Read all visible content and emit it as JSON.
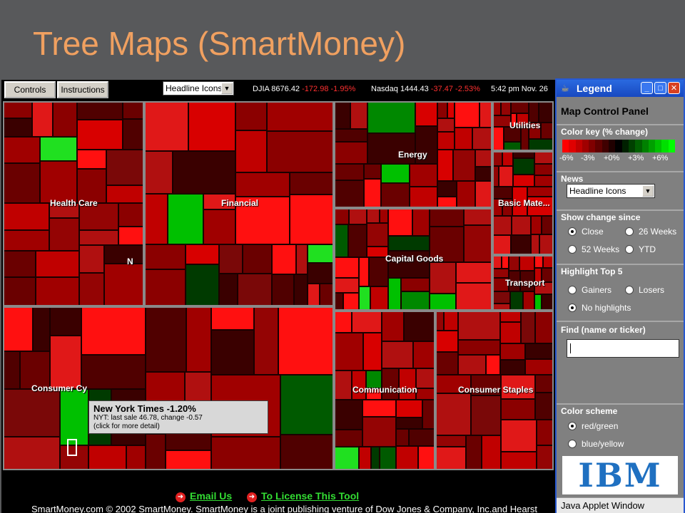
{
  "slide_title": "Tree Maps (SmartMoney)",
  "toolbar": {
    "controls_label": "Controls",
    "instructions_label": "Instructions",
    "news_selected": "Headline Icons",
    "djia": "DJIA 8676.42",
    "djia_change": "-172.98 -1.95%",
    "nasdaq": "Nasdaq 1444.43",
    "nasdaq_change": "-37.47 -2.53%",
    "time": "5:42 pm Nov. 26"
  },
  "sectors": {
    "health_care": "Health Care",
    "financial": "Financial",
    "energy": "Energy",
    "utilities": "Utilities",
    "basic_materials": "Basic Mate...",
    "capital_goods": "Capital Goods",
    "transport": "Transport",
    "consumer_cyclical": "Consumer Cy",
    "communication": "Communication",
    "consumer_staples": "Consumer Staples",
    "marker": "N"
  },
  "tooltip": {
    "title": "New York Times -1.20%",
    "line1": "NYT: last sale 46.78,  change -0.57",
    "line2": "(click for more detail)"
  },
  "footer": {
    "email_label": "Email Us",
    "license_label": "To License This Tool",
    "copyright": "SmartMoney.com © 2002 SmartMoney. SmartMoney is a joint publishing venture of Dow Jones & Company, Inc.and Hearst"
  },
  "legend": {
    "window_title": "Legend",
    "panel_title": "Map Control Panel",
    "color_key_label": "Color key (% change)",
    "scale": [
      "-6%",
      "-3%",
      "+0%",
      "+3%",
      "+6%"
    ],
    "news_label": "News",
    "news_selected": "Headline Icons",
    "show_change_label": "Show change since",
    "opt_close": "Close",
    "opt_26weeks": "26 Weeks",
    "opt_52weeks": "52 Weeks",
    "opt_ytd": "YTD",
    "highlight_label": "Highlight Top 5",
    "opt_gainers": "Gainers",
    "opt_losers": "Losers",
    "opt_no_highlights": "No highlights",
    "find_label": "Find (name or ticker)",
    "find_value": "",
    "color_scheme_label": "Color scheme",
    "opt_redgreen": "red/green",
    "opt_blueyellow": "blue/yellow",
    "logo_text": "IBM",
    "status": "Java Applet Window"
  },
  "colors": {
    "title": "#f0a060",
    "background": "#58595b",
    "link": "#33dd33",
    "negative": "#ff3030",
    "legend_border": "#2858d0"
  }
}
